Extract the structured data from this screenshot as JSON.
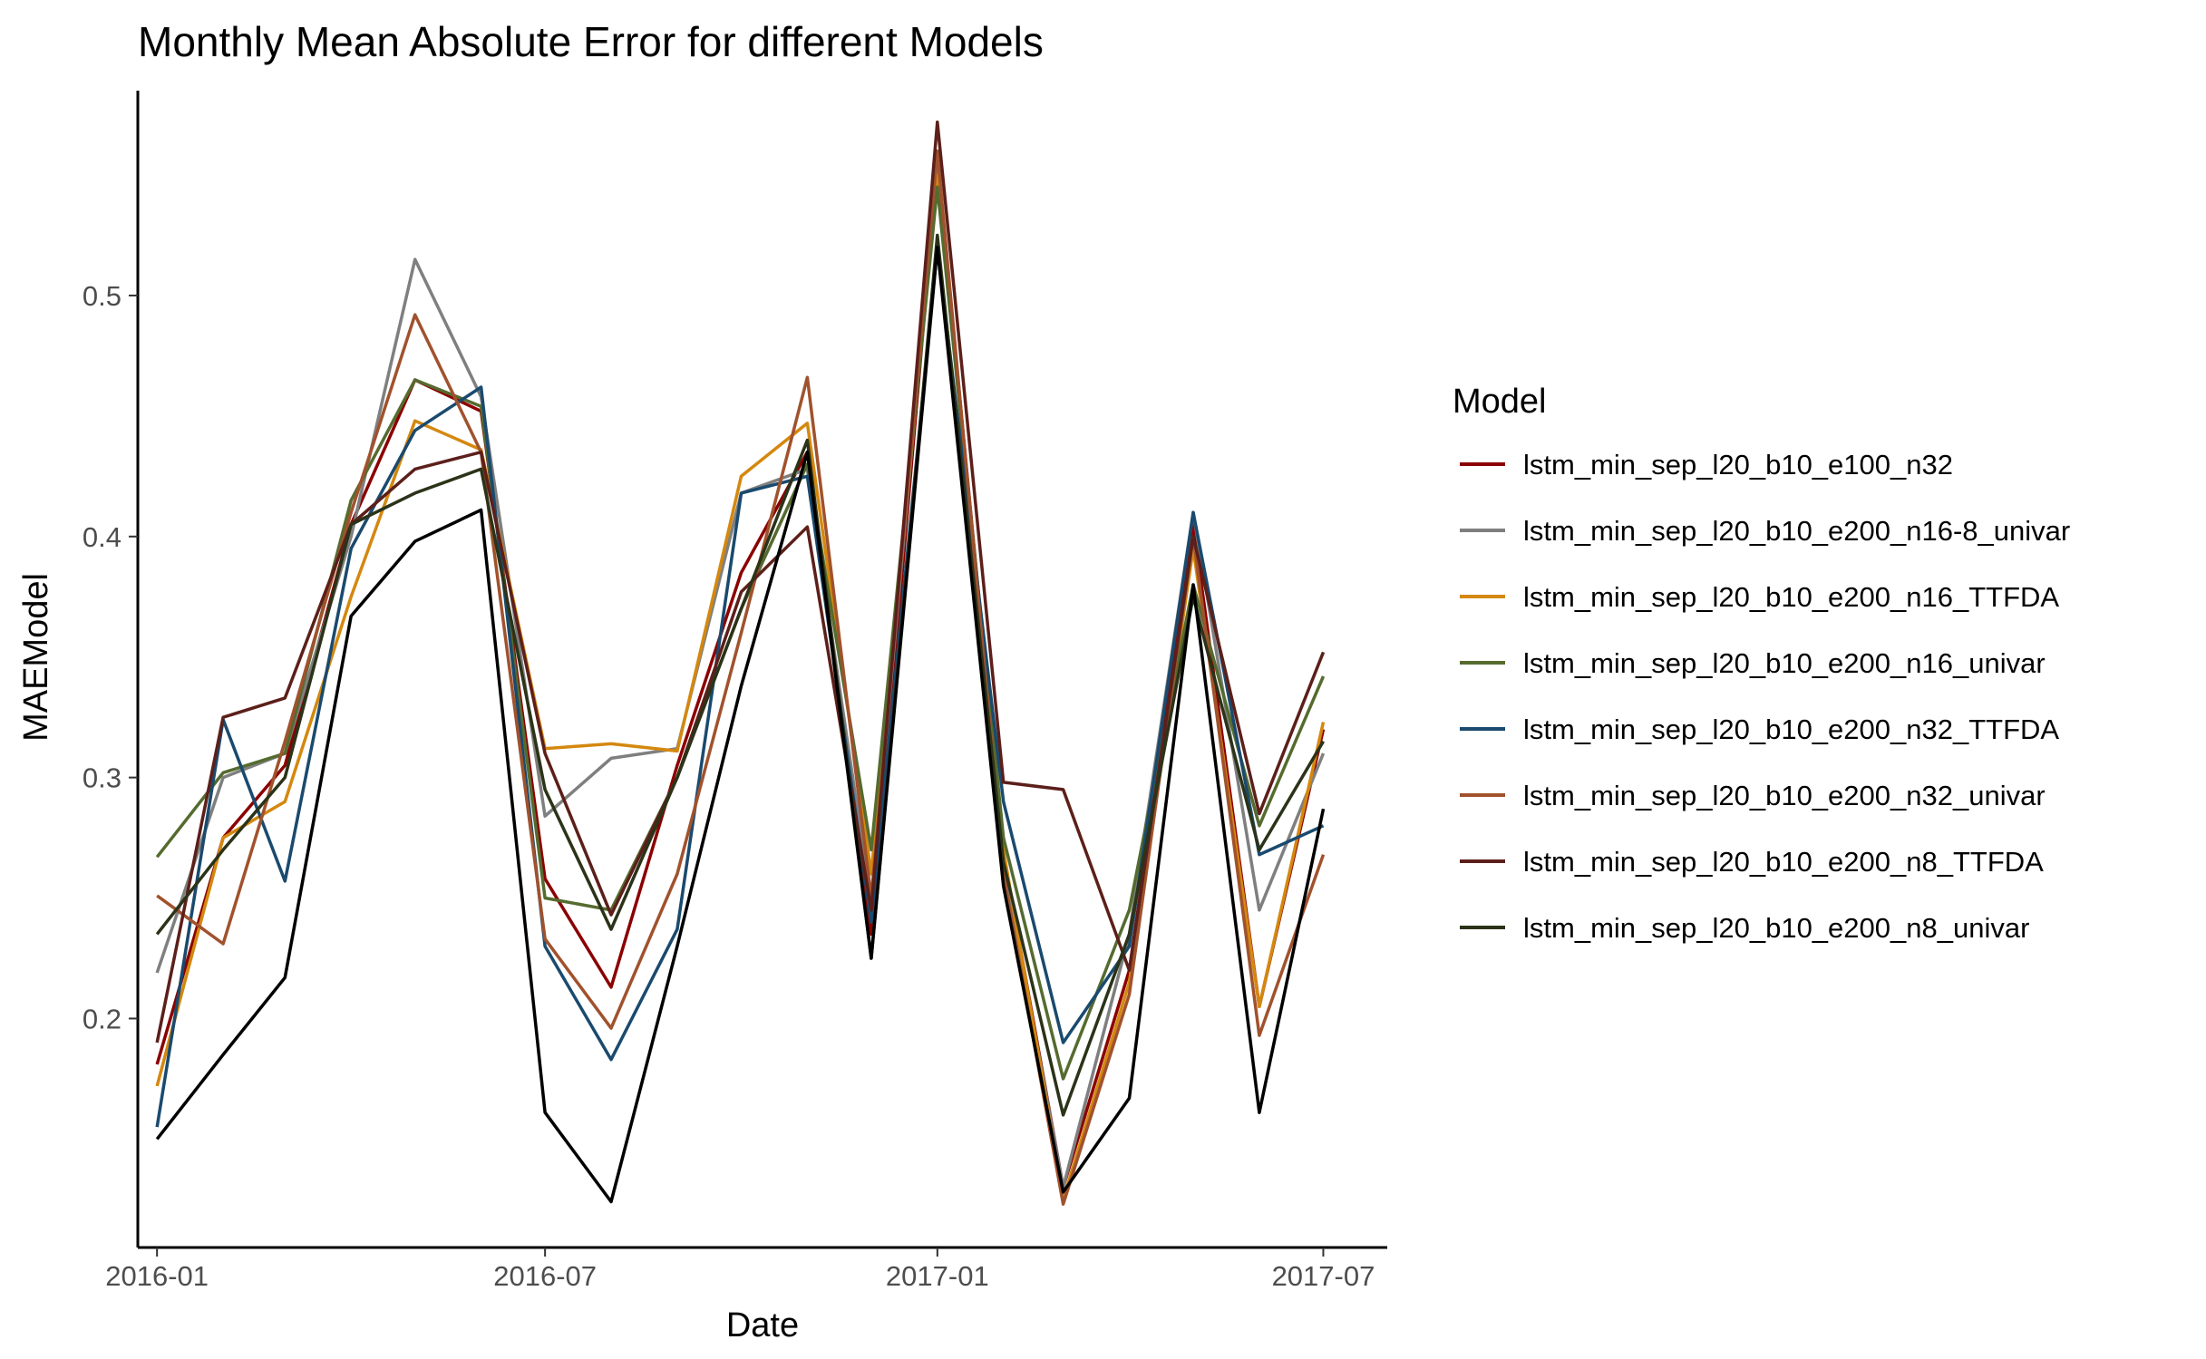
{
  "chart_data": {
    "type": "line",
    "title": "Monthly Mean Absolute Error for different Models",
    "xlabel": "Date",
    "ylabel": "MAEModel",
    "legend_title": "Model",
    "legend_position": "right",
    "grid": false,
    "x": [
      "2016-01",
      "2016-02",
      "2016-03",
      "2016-04",
      "2016-05",
      "2016-06",
      "2016-07",
      "2016-08",
      "2016-09",
      "2016-10",
      "2016-11",
      "2016-12",
      "2017-01",
      "2017-02",
      "2017-03",
      "2017-04",
      "2017-05",
      "2017-06",
      "2017-07"
    ],
    "x_ticks": [
      "2016-01",
      "2016-07",
      "2017-01",
      "2017-07"
    ],
    "y_ticks": [
      0.2,
      0.3,
      0.4,
      0.5
    ],
    "y_tick_labels": [
      "0.2",
      "0.3",
      "0.4",
      "0.5"
    ],
    "xlim": [
      "2015-12-23",
      "2017-07-31"
    ],
    "ylim": [
      0.105,
      0.585
    ],
    "series": [
      {
        "name": "lstm_min_sep_l20_b10_e100_n32",
        "color": "#8b0000",
        "values": [
          0.181,
          0.275,
          0.305,
          0.405,
          0.465,
          0.452,
          0.258,
          0.213,
          0.305,
          0.385,
          0.435,
          0.235,
          0.555,
          0.268,
          0.13,
          0.22,
          0.405,
          0.205,
          0.32
        ]
      },
      {
        "name": "lstm_min_sep_l20_b10_e200_n16-8_univar",
        "color": "#7f7f7f",
        "values": [
          0.219,
          0.3,
          0.31,
          0.4,
          0.515,
          0.458,
          0.284,
          0.308,
          0.312,
          0.418,
          0.428,
          0.248,
          0.555,
          0.265,
          0.13,
          0.235,
          0.41,
          0.245,
          0.31
        ]
      },
      {
        "name": "lstm_min_sep_l20_b10_e200_n16_TTFDA",
        "color": "#d4880f",
        "values": [
          0.172,
          0.275,
          0.29,
          0.375,
          0.448,
          0.436,
          0.312,
          0.314,
          0.311,
          0.425,
          0.447,
          0.26,
          0.55,
          0.27,
          0.125,
          0.215,
          0.395,
          0.205,
          0.323
        ]
      },
      {
        "name": "lstm_min_sep_l20_b10_e200_n16_univar",
        "color": "#556b2f",
        "values": [
          0.267,
          0.302,
          0.31,
          0.415,
          0.465,
          0.454,
          0.25,
          0.245,
          0.3,
          0.37,
          0.43,
          0.27,
          0.545,
          0.275,
          0.175,
          0.245,
          0.38,
          0.28,
          0.342
        ]
      },
      {
        "name": "lstm_min_sep_l20_b10_e200_n32_TTFDA",
        "color": "#1a4a6e",
        "values": [
          0.155,
          0.324,
          0.257,
          0.395,
          0.444,
          0.462,
          0.23,
          0.183,
          0.237,
          0.418,
          0.425,
          0.24,
          0.52,
          0.29,
          0.19,
          0.23,
          0.41,
          0.268,
          0.28
        ]
      },
      {
        "name": "lstm_min_sep_l20_b10_e200_n32_univar",
        "color": "#a0522d",
        "values": [
          0.251,
          0.231,
          0.315,
          0.41,
          0.492,
          0.435,
          0.233,
          0.196,
          0.26,
          0.36,
          0.466,
          0.25,
          0.56,
          0.26,
          0.123,
          0.21,
          0.4,
          0.193,
          0.268
        ]
      },
      {
        "name": "lstm_min_sep_l20_b10_e200_n8_TTFDA",
        "color": "#5c1f1a",
        "values": [
          0.19,
          0.325,
          0.333,
          0.405,
          0.428,
          0.435,
          0.31,
          0.243,
          0.3,
          0.377,
          0.404,
          0.245,
          0.572,
          0.298,
          0.295,
          0.22,
          0.4,
          0.285,
          0.352
        ]
      },
      {
        "name": "lstm_min_sep_l20_b10_e200_n8_univar",
        "color": "#2b3318",
        "values": [
          0.235,
          0.27,
          0.3,
          0.405,
          0.418,
          0.428,
          0.295,
          0.237,
          0.3,
          0.37,
          0.44,
          0.225,
          0.525,
          0.265,
          0.16,
          0.235,
          0.375,
          0.27,
          0.315
        ]
      },
      {
        "name": "",
        "color": "#000000",
        "in_legend": false,
        "values": [
          0.15,
          0.185,
          0.217,
          0.367,
          0.398,
          0.411,
          0.161,
          0.124,
          0.23,
          0.338,
          0.435,
          0.225,
          0.52,
          0.255,
          0.128,
          0.167,
          0.38,
          0.161,
          0.287
        ]
      }
    ]
  }
}
